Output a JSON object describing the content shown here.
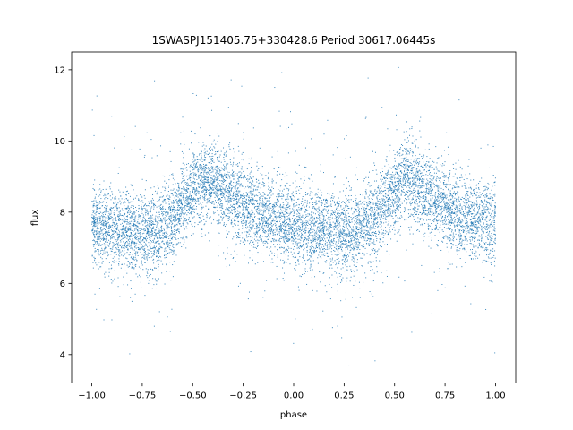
{
  "chart_data": {
    "type": "scatter",
    "title": "1SWASPJ151405.75+330428.6 Period 30617.06445s",
    "xlabel": "phase",
    "ylabel": "flux",
    "xlim": [
      -1.1,
      1.1
    ],
    "ylim": [
      3.2,
      12.5
    ],
    "xticks": [
      -1.0,
      -0.75,
      -0.5,
      -0.25,
      0.0,
      0.25,
      0.5,
      0.75,
      1.0
    ],
    "xtick_labels": [
      "−1.00",
      "−0.75",
      "−0.50",
      "−0.25",
      "0.00",
      "0.25",
      "0.50",
      "0.75",
      "1.00"
    ],
    "yticks": [
      4,
      6,
      8,
      10,
      12
    ],
    "ytick_labels": [
      "4",
      "6",
      "8",
      "10",
      "12"
    ],
    "grid": false,
    "legend": "none",
    "marker_color": "#1f77b4",
    "series": [
      {
        "description_of_trend": "phase-folded light curve, mirrored over two cycles",
        "phase_mean_flux": [
          {
            "x": -1.0,
            "y": 7.6
          },
          {
            "x": -0.9,
            "y": 7.5
          },
          {
            "x": -0.8,
            "y": 7.5
          },
          {
            "x": -0.7,
            "y": 7.4
          },
          {
            "x": -0.6,
            "y": 7.8
          },
          {
            "x": -0.5,
            "y": 8.6
          },
          {
            "x": -0.45,
            "y": 8.9
          },
          {
            "x": -0.4,
            "y": 8.8
          },
          {
            "x": -0.3,
            "y": 8.4
          },
          {
            "x": -0.2,
            "y": 8.0
          },
          {
            "x": -0.1,
            "y": 7.8
          },
          {
            "x": 0.0,
            "y": 7.6
          },
          {
            "x": 0.1,
            "y": 7.5
          },
          {
            "x": 0.2,
            "y": 7.5
          },
          {
            "x": 0.3,
            "y": 7.4
          },
          {
            "x": 0.4,
            "y": 7.8
          },
          {
            "x": 0.5,
            "y": 8.6
          },
          {
            "x": 0.55,
            "y": 8.9
          },
          {
            "x": 0.6,
            "y": 8.8
          },
          {
            "x": 0.7,
            "y": 8.4
          },
          {
            "x": 0.8,
            "y": 8.0
          },
          {
            "x": 0.9,
            "y": 7.8
          },
          {
            "x": 1.0,
            "y": 7.6
          }
        ]
      }
    ]
  }
}
